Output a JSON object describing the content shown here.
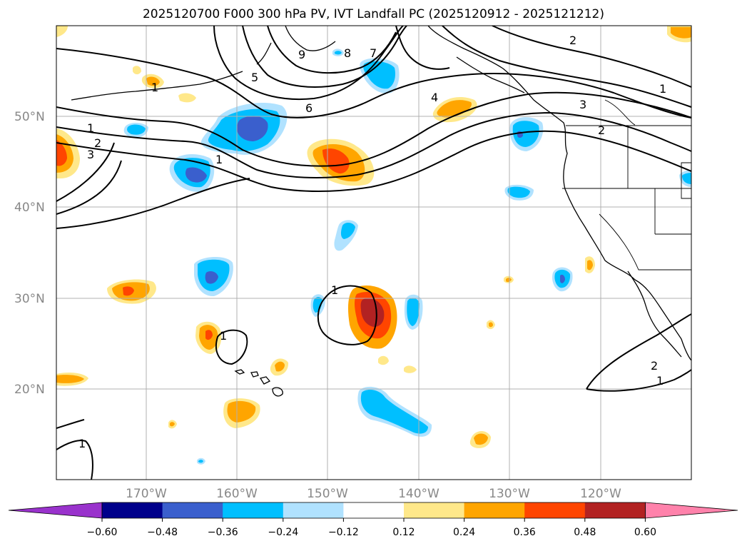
{
  "title": "2025120700 F000 300 hPa PV, IVT Landfall PC (2025120912 - 2025121212)",
  "lat_labels": [
    "50°N",
    "40°N",
    "30°N",
    "20°N"
  ],
  "lon_labels": [
    "170°W",
    "160°W",
    "150°W",
    "140°W",
    "130°W",
    "120°W"
  ],
  "colorbar": {
    "ticks": [
      "−0.60",
      "−0.48",
      "−0.36",
      "−0.24",
      "−0.12",
      "0.12",
      "0.24",
      "0.36",
      "0.48",
      "0.60"
    ],
    "colors": [
      "#9932cc",
      "#00008b",
      "#3a5fcd",
      "#00bfff",
      "#b0e2ff",
      "#ffffff",
      "#ffe88a",
      "#ffa500",
      "#ff4500",
      "#b22222",
      "#ff82ab"
    ]
  },
  "contour_labels": [
    "1",
    "2",
    "3",
    "1",
    "5",
    "6",
    "8",
    "7",
    "4",
    "9",
    "2",
    "3",
    "1",
    "2",
    "1",
    "1",
    "1",
    "2",
    "1",
    "1"
  ],
  "colors": {
    "pos_low": "#ffe88a",
    "pos_mid": "#ffa500",
    "pos_high": "#ff4500",
    "pos_max": "#b22222",
    "neg_low": "#b0e2ff",
    "neg_mid": "#00bfff",
    "neg_high": "#3a5fcd",
    "grid": "#b0b0b0"
  }
}
